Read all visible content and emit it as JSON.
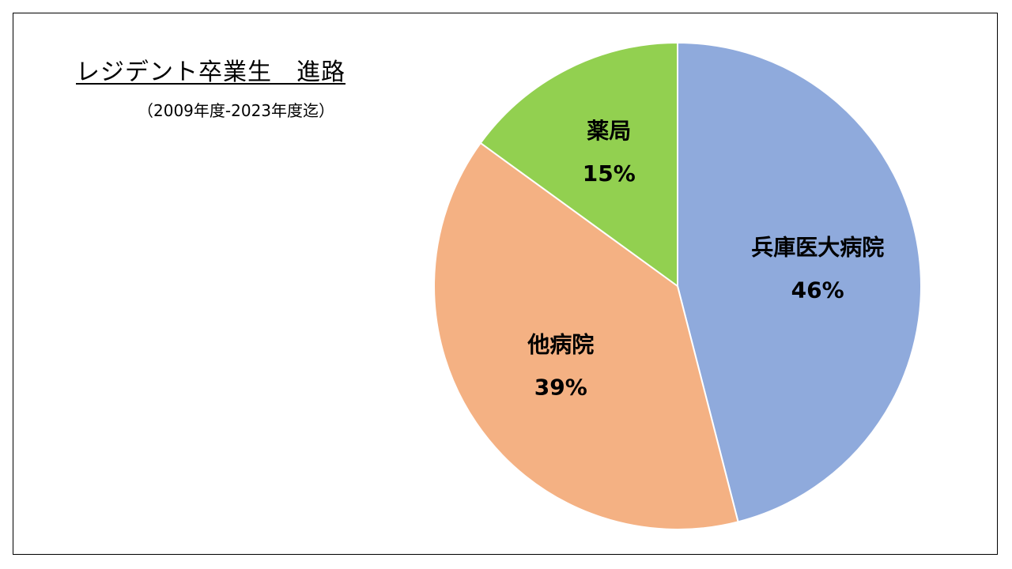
{
  "header": {
    "title": "レジデント卒業生　進路",
    "subtitle": "（2009年度-2023年度迄）"
  },
  "chart_data": {
    "type": "pie",
    "title": "レジデント卒業生　進路",
    "subtitle": "（2009年度-2023年度迄）",
    "categories": [
      "兵庫医大病院",
      "他病院",
      "薬局"
    ],
    "values": [
      46,
      39,
      15
    ],
    "value_labels": [
      "46%",
      "39%",
      "15%"
    ],
    "colors": [
      "#8FAADC",
      "#F4B183",
      "#92D050"
    ],
    "start": "12 o'clock, clockwise",
    "legend": "none (data labels on slices)"
  }
}
